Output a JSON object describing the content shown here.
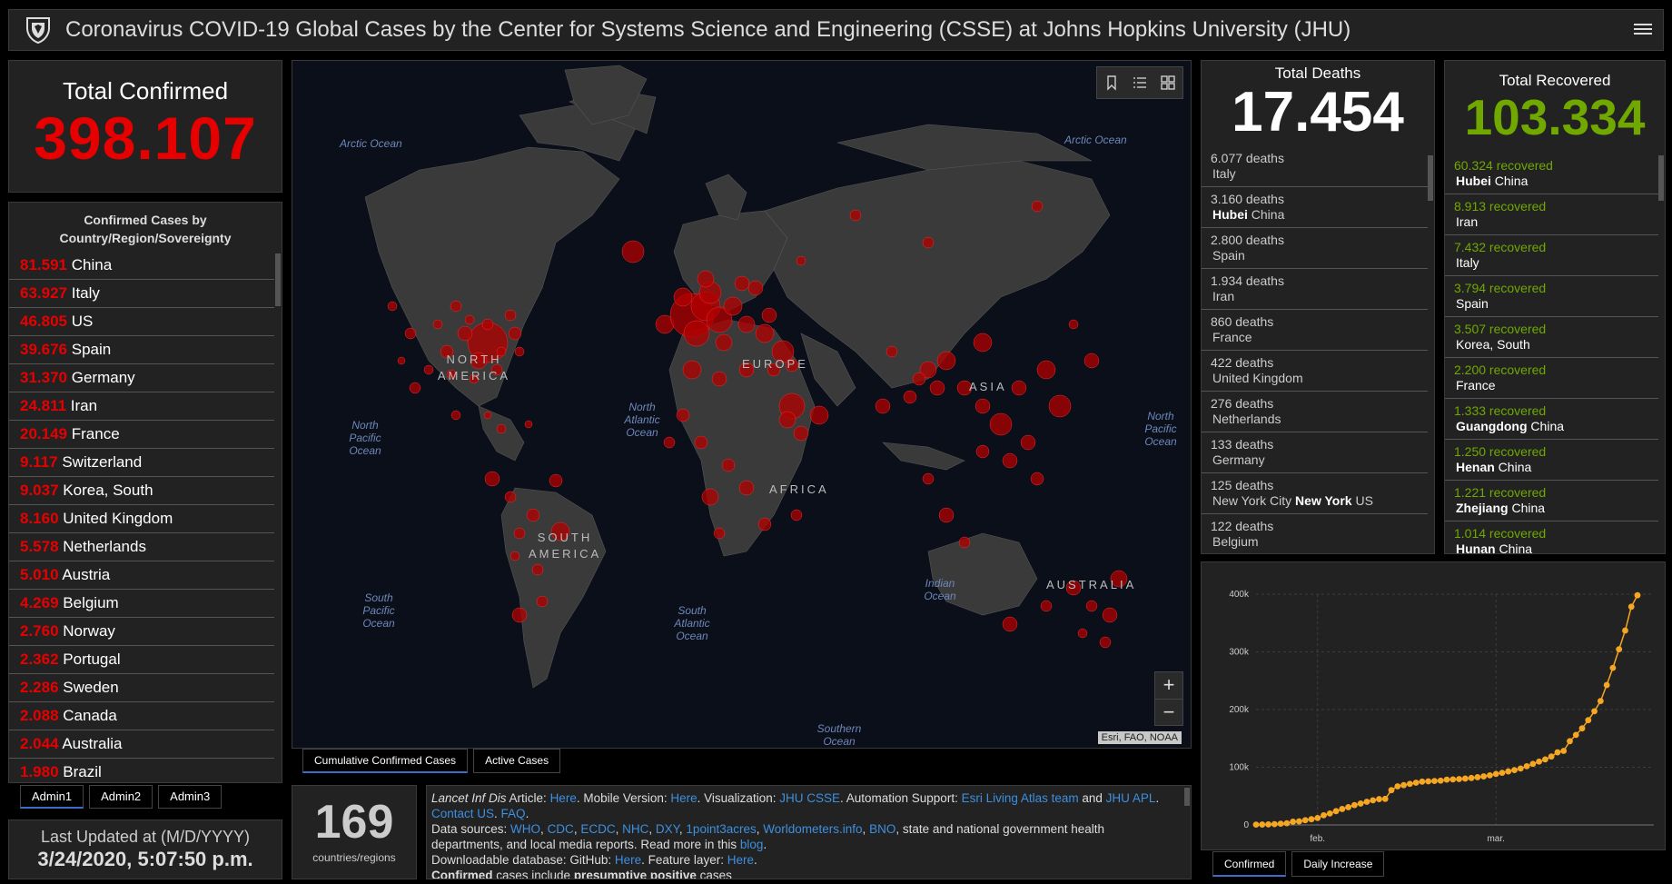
{
  "header": {
    "title": "Coronavirus COVID-19 Global Cases by the Center for Systems Science and Engineering (CSSE) at Johns Hopkins University (JHU)"
  },
  "total_confirmed": {
    "label": "Total Confirmed",
    "value": "398.107"
  },
  "confirmed_list": {
    "title": "Confirmed Cases by Country/Region/Sovereignty",
    "items": [
      {
        "value": "81.591",
        "name": "China"
      },
      {
        "value": "63.927",
        "name": "Italy"
      },
      {
        "value": "46.805",
        "name": "US"
      },
      {
        "value": "39.676",
        "name": "Spain"
      },
      {
        "value": "31.370",
        "name": "Germany"
      },
      {
        "value": "24.811",
        "name": "Iran"
      },
      {
        "value": "20.149",
        "name": "France"
      },
      {
        "value": "9.117",
        "name": "Switzerland"
      },
      {
        "value": "9.037",
        "name": "Korea, South"
      },
      {
        "value": "8.160",
        "name": "United Kingdom"
      },
      {
        "value": "5.578",
        "name": "Netherlands"
      },
      {
        "value": "5.010",
        "name": "Austria"
      },
      {
        "value": "4.269",
        "name": "Belgium"
      },
      {
        "value": "2.760",
        "name": "Norway"
      },
      {
        "value": "2.362",
        "name": "Portugal"
      },
      {
        "value": "2.286",
        "name": "Sweden"
      },
      {
        "value": "2.088",
        "name": "Canada"
      },
      {
        "value": "2.044",
        "name": "Australia"
      },
      {
        "value": "1.980",
        "name": "Brazil"
      }
    ]
  },
  "admin_tabs": [
    "Admin1",
    "Admin2",
    "Admin3"
  ],
  "last_updated": {
    "label": "Last Updated at (M/D/YYYY)",
    "value": "3/24/2020, 5:07:50 p.m."
  },
  "map": {
    "oceans": [
      "Arctic Ocean",
      "Arctic Ocean",
      "North Pacific Ocean",
      "North Atlantic Ocean",
      "North Pacific Ocean",
      "South Pacific Ocean",
      "South Atlantic Ocean",
      "Indian Ocean",
      "Southern Ocean"
    ],
    "continents": [
      "NORTH AMERICA",
      "EUROPE",
      "ASIA",
      "AFRICA",
      "SOUTH AMERICA",
      "AUSTRALIA"
    ],
    "attribution": "Esri, FAO, NOAA",
    "zoom_in": "+",
    "zoom_out": "−",
    "toolbar_icons": [
      "bookmark-icon",
      "legend-list-icon",
      "basemap-grid-icon"
    ]
  },
  "map_tabs": [
    "Cumulative Confirmed Cases",
    "Active Cases"
  ],
  "countries": {
    "value": "169",
    "label": "countries/regions"
  },
  "info": {
    "lancet": "Lancet Inf Dis",
    "article": " Article: ",
    "here": "Here",
    "mobile": ". Mobile Version: ",
    "visualization": ". Visualization: ",
    "jhu_csse": "JHU CSSE",
    "automation": ". Automation Support: ",
    "esri_team": "Esri Living Atlas team",
    "and": " and ",
    "jhu_apl": "JHU APL",
    "dot": ". ",
    "contact": "Contact US",
    "faq": "FAQ",
    "end_dot": ".",
    "data_sources": "Data sources: ",
    "sources": [
      "WHO",
      "CDC",
      "ECDC",
      "NHC",
      "DXY",
      "1point3acres",
      "Worldometers.info",
      "BNO"
    ],
    "sep": ", ",
    "sources_tail": ", state and national government health departments, and local media reports.  Read more in this ",
    "blog": "blog",
    "download": "Downloadable database: GitHub: ",
    "feature": ". Feature layer: ",
    "confirmed_b": "Confirmed",
    "confirmed_tail": " cases include ",
    "presumptive_b": "presumptive positive",
    "cases": " cases"
  },
  "deaths": {
    "label": "Total Deaths",
    "value": "17.454",
    "items": [
      {
        "value": "6.077 deaths",
        "pre": "",
        "bold": "",
        "post": "Italy"
      },
      {
        "value": "3.160 deaths",
        "pre": "",
        "bold": "Hubei",
        "post": " China"
      },
      {
        "value": "2.800 deaths",
        "pre": "",
        "bold": "",
        "post": "Spain"
      },
      {
        "value": "1.934 deaths",
        "pre": "",
        "bold": "",
        "post": "Iran"
      },
      {
        "value": "860 deaths",
        "pre": "",
        "bold": "",
        "post": "France"
      },
      {
        "value": "422 deaths",
        "pre": "",
        "bold": "",
        "post": "United Kingdom"
      },
      {
        "value": "276 deaths",
        "pre": "",
        "bold": "",
        "post": "Netherlands"
      },
      {
        "value": "133 deaths",
        "pre": "",
        "bold": "",
        "post": "Germany"
      },
      {
        "value": "125 deaths",
        "pre": "New York City ",
        "bold": "New York",
        "post": " US"
      },
      {
        "value": "122 deaths",
        "pre": "",
        "bold": "",
        "post": "Belgium"
      }
    ]
  },
  "recovered": {
    "label": "Total Recovered",
    "value": "103.334",
    "items": [
      {
        "value": "60.324 recovered",
        "bold": "Hubei",
        "post": " China"
      },
      {
        "value": "8.913 recovered",
        "bold": "",
        "post": "Iran"
      },
      {
        "value": "7.432 recovered",
        "bold": "",
        "post": "Italy"
      },
      {
        "value": "3.794 recovered",
        "bold": "",
        "post": "Spain"
      },
      {
        "value": "3.507 recovered",
        "bold": "",
        "post": "Korea, South"
      },
      {
        "value": "2.200 recovered",
        "bold": "",
        "post": "France"
      },
      {
        "value": "1.333 recovered",
        "bold": "Guangdong",
        "post": " China"
      },
      {
        "value": "1.250 recovered",
        "bold": "Henan",
        "post": " China"
      },
      {
        "value": "1.221 recovered",
        "bold": "Zhejiang",
        "post": " China"
      },
      {
        "value": "1.014 recovered",
        "bold": "Hunan",
        "post": " China"
      }
    ]
  },
  "chart_tabs": [
    "Confirmed",
    "Daily Increase"
  ],
  "colors": {
    "confirmed": "#e60000",
    "recovered": "#70a800",
    "chart_line": "#f5a623",
    "link": "#3d8fe0"
  },
  "chart_data": {
    "type": "line",
    "title": "",
    "xlabel": "",
    "ylabel": "",
    "ylim": [
      0,
      400000
    ],
    "y_ticks": [
      "0",
      "100k",
      "200k",
      "300k",
      "400k"
    ],
    "x_tick_labels": [
      "feb.",
      "mar."
    ],
    "x_tick_dates": [
      "2020-02-01",
      "2020-03-01"
    ],
    "series": [
      {
        "x": [
          "2020-01-22",
          "2020-01-23",
          "2020-01-24",
          "2020-01-25",
          "2020-01-26",
          "2020-01-27",
          "2020-01-28",
          "2020-01-29",
          "2020-01-30",
          "2020-01-31",
          "2020-02-01",
          "2020-02-02",
          "2020-02-03",
          "2020-02-04",
          "2020-02-05",
          "2020-02-06",
          "2020-02-07",
          "2020-02-08",
          "2020-02-09",
          "2020-02-10",
          "2020-02-11",
          "2020-02-12",
          "2020-02-13",
          "2020-02-14",
          "2020-02-15",
          "2020-02-16",
          "2020-02-17",
          "2020-02-18",
          "2020-02-19",
          "2020-02-20",
          "2020-02-21",
          "2020-02-22",
          "2020-02-23",
          "2020-02-24",
          "2020-02-25",
          "2020-02-26",
          "2020-02-27",
          "2020-02-28",
          "2020-02-29",
          "2020-03-01",
          "2020-03-02",
          "2020-03-03",
          "2020-03-04",
          "2020-03-05",
          "2020-03-06",
          "2020-03-07",
          "2020-03-08",
          "2020-03-09",
          "2020-03-10",
          "2020-03-11",
          "2020-03-12",
          "2020-03-13",
          "2020-03-14",
          "2020-03-15",
          "2020-03-16",
          "2020-03-17",
          "2020-03-18",
          "2020-03-19",
          "2020-03-20",
          "2020-03-21",
          "2020-03-22",
          "2020-03-23",
          "2020-03-24"
        ],
        "values": [
          555,
          654,
          941,
          1434,
          2118,
          2927,
          5578,
          6166,
          8234,
          9927,
          12038,
          16787,
          19881,
          23892,
          27635,
          30817,
          34391,
          37120,
          40150,
          42762,
          44802,
          45221,
          60368,
          66885,
          69030,
          71224,
          73258,
          75136,
          75639,
          76197,
          76823,
          78579,
          78965,
          79568,
          80413,
          81395,
          82754,
          84120,
          86011,
          88369,
          90306,
          92840,
          95120,
          97886,
          101801,
          105847,
          109821,
          113590,
          118620,
          125875,
          128352,
          145205,
          156101,
          167454,
          181574,
          197102,
          214821,
          242570,
          272208,
          304507,
          336953,
          378235,
          398107
        ]
      }
    ]
  }
}
